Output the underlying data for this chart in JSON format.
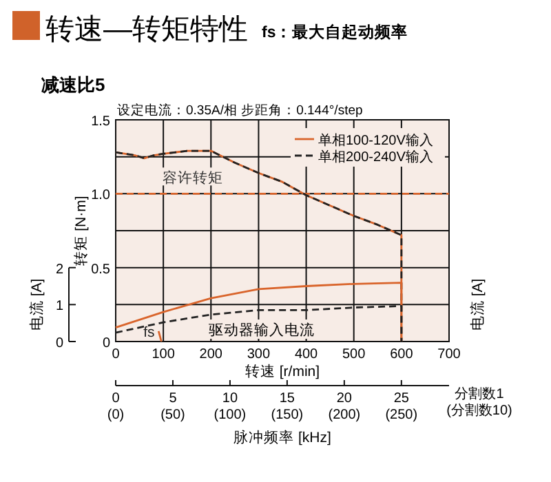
{
  "chart_data": {
    "type": "line",
    "title": "转速—转矩特性",
    "subtitle": "fs：最大自起动频率",
    "xlabel": "转速 [r/min]",
    "ylabel": "转矩 [N·m]",
    "y2label": "电流 [A]",
    "x2label": "脉冲频率 [kHz]",
    "xlim": [
      0,
      700
    ],
    "xticks": [
      0,
      100,
      200,
      300,
      400,
      500,
      600,
      700
    ],
    "ylim": [
      0,
      1.5
    ],
    "yticks": [
      0,
      {
        "value": 0.25,
        "label": null
      },
      0.5,
      {
        "value": 0.75,
        "label": null
      },
      {
        "value": 1,
        "label": "1.0"
      },
      {
        "value": 1.25,
        "label": null
      },
      1.5
    ],
    "y2lim": [
      0,
      6
    ],
    "y2ticks": [
      0,
      1,
      2
    ],
    "x2lim": [
      0,
      29.17
    ],
    "x2ticks": [
      0,
      5,
      10,
      15,
      20,
      25
    ],
    "grid": true,
    "legend": "top right",
    "ref_lines": [
      {
        "axis": "y",
        "value": 1,
        "label": "容许转矩",
        "color": "#d9642b",
        "line_style": "dashed"
      }
    ],
    "annotations": [
      "减速比5",
      "设定电流：0.35A/相  步距角：0.144°/step",
      "分割数1",
      "(分割数10)",
      "驱动器输入电流",
      {
        "text": "fs",
        "x": 70,
        "y": 0.07
      },
      "电流 [A]",
      "(0)",
      "(50)",
      "(100)",
      "(150)",
      "(200)",
      "(250)"
    ],
    "series": [
      {
        "name": "单相100-120V输入",
        "color": "#d9642b",
        "line_style": "solid",
        "x": [
          0,
          20,
          40,
          60,
          80,
          100,
          150,
          200,
          250,
          300,
          350,
          400,
          450,
          500,
          550,
          600,
          600
        ],
        "values": [
          1.28,
          1.27,
          1.26,
          1.24,
          1.26,
          1.27,
          1.29,
          1.29,
          1.21,
          1.14,
          1.08,
          0.99,
          0.92,
          0.85,
          0.79,
          0.72,
          0
        ]
      },
      {
        "name": "单相200-240V输入",
        "color": "#222222",
        "line_style": "dashed",
        "x": [
          0,
          20,
          40,
          60,
          80,
          100,
          150,
          200,
          250,
          300,
          350,
          400,
          450,
          500,
          550,
          600,
          600
        ],
        "values": [
          1.28,
          1.27,
          1.26,
          1.24,
          1.26,
          1.27,
          1.29,
          1.29,
          1.21,
          1.14,
          1.08,
          0.99,
          0.92,
          0.85,
          0.79,
          0.72,
          0
        ]
      },
      {
        "color": "#d9642b",
        "line_style": "solid",
        "axis": "y2",
        "x": [
          0,
          100,
          200,
          300,
          400,
          500,
          600,
          600
        ],
        "values": [
          0.38,
          0.8,
          1.17,
          1.42,
          1.5,
          1.56,
          1.59,
          0
        ]
      },
      {
        "color": "#222222",
        "line_style": "dashed",
        "axis": "y2",
        "x": [
          0,
          100,
          200,
          300,
          400,
          500,
          600,
          600
        ],
        "values": [
          0.24,
          0.52,
          0.73,
          0.85,
          0.85,
          0.92,
          0.96,
          0
        ]
      },
      {
        "color": "#d9642b",
        "line_style": "solid",
        "x": [
          90,
          96
        ],
        "values": [
          0.07,
          0
        ]
      }
    ]
  }
}
